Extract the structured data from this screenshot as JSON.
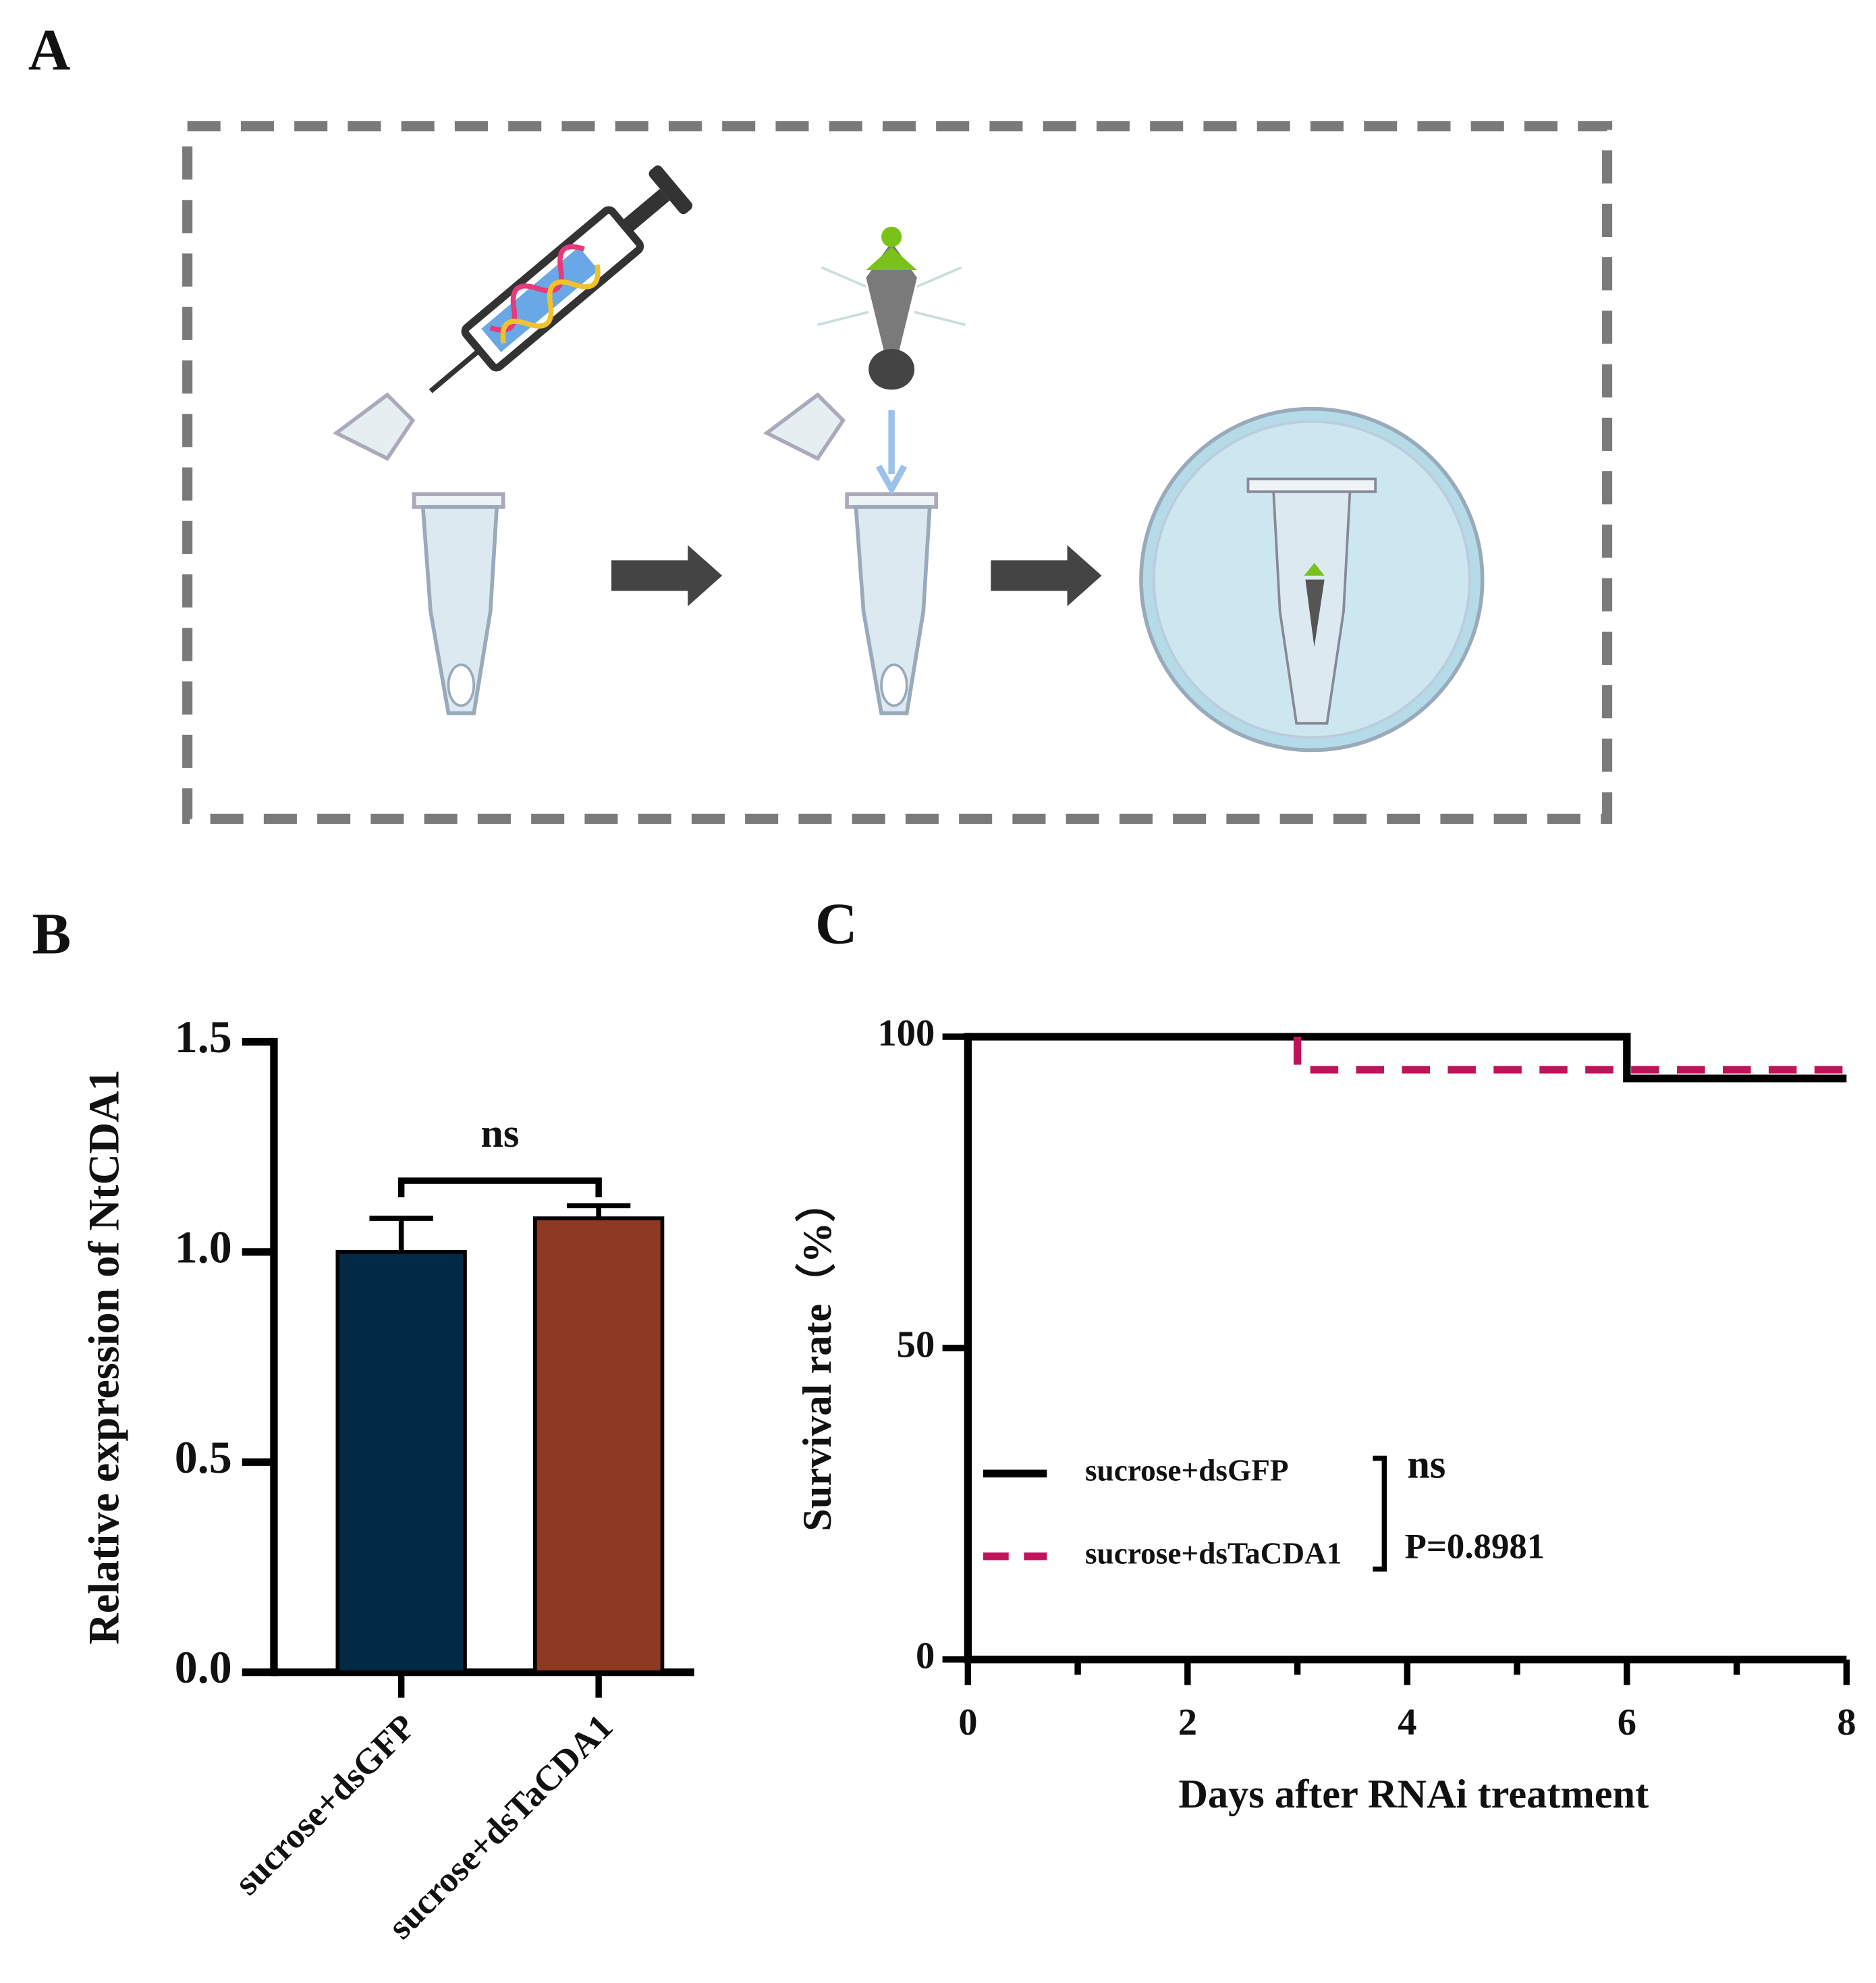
{
  "panel_a": {
    "label": "A"
  },
  "chart_data": [
    {
      "type": "bar",
      "label": "B",
      "ylabel": "Relative expression of NtCDA1",
      "categories": [
        "sucrose+dsGFP",
        "sucrose+dsTaCDA1"
      ],
      "values": [
        1.0,
        1.08
      ],
      "errors": [
        0.08,
        0.03
      ],
      "colors": [
        "#022a47",
        "#8e3a22"
      ],
      "ylim": [
        0,
        1.5
      ],
      "yticks": [
        {
          "value": 0,
          "label": "0.0"
        },
        {
          "value": 0.5,
          "label": "0.5"
        },
        {
          "value": 1.0,
          "label": "1.0"
        },
        {
          "value": 1.5,
          "label": "1.5"
        }
      ],
      "annotation": "ns"
    },
    {
      "type": "line",
      "label": "C",
      "ylabel": "Survival rate（%）",
      "xlabel": "Days  after RNAi treatment",
      "xlim": [
        0,
        8
      ],
      "xticks": [
        0,
        2,
        4,
        6,
        8
      ],
      "xminorticks": [
        1,
        3,
        5,
        7
      ],
      "ylim": [
        0,
        100
      ],
      "yticks": [
        0,
        50,
        100
      ],
      "series": [
        {
          "name": "sucrose+dsGFP",
          "color": "#000000",
          "dash": false,
          "x": [
            0,
            6,
            8
          ],
          "values": [
            100,
            93.3,
            93.3
          ]
        },
        {
          "name": "sucrose+dsTaCDA1",
          "color": "#c0135a",
          "dash": true,
          "x": [
            0,
            3,
            8
          ],
          "values": [
            100,
            94.7,
            94.7
          ]
        }
      ],
      "annotation": "ns",
      "p_value": "P=0.8981"
    }
  ]
}
